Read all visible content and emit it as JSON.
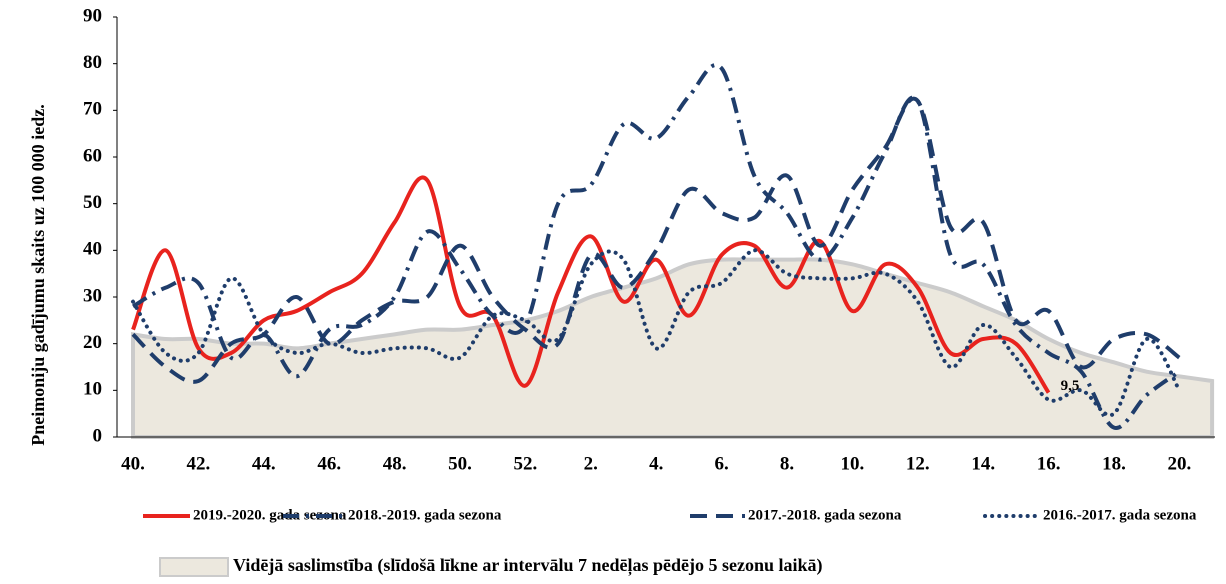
{
  "chart_data": {
    "type": "line",
    "y_label": "Pneimoniju gadījumu skaits uz 100 000 iedz.",
    "categories": [
      "40.",
      null,
      "42.",
      null,
      "44.",
      null,
      "46.",
      null,
      "48.",
      null,
      "50.",
      null,
      "52.",
      null,
      "2.",
      null,
      "4.",
      null,
      "6.",
      null,
      "8.",
      null,
      "10.",
      null,
      "12.",
      null,
      "14.",
      null,
      "16.",
      null,
      "18.",
      null,
      "20.",
      null
    ],
    "ylim": [
      0,
      90
    ],
    "yticks": [
      0,
      10,
      20,
      30,
      40,
      50,
      60,
      70,
      80,
      90
    ],
    "area": {
      "name": "Vidējā saslimstība (slīdošā līkne ar intervālu 7 nedēļas pēdējo 5 sezonu laikā)",
      "color": "#ece8de",
      "edge": "#cbcbcb",
      "values": [
        22,
        21,
        21,
        20,
        20,
        19,
        20,
        21,
        22,
        23,
        23,
        24,
        25,
        27,
        30,
        32,
        34,
        37,
        38,
        38,
        38,
        38,
        37,
        35,
        33,
        31,
        28,
        25,
        21,
        18,
        16,
        14,
        13,
        12
      ]
    },
    "series": [
      {
        "name": "2019.-2020. gada sezona",
        "color": "#e8231e",
        "dash": "solid",
        "values": [
          23,
          40,
          19,
          18,
          25,
          27,
          31,
          35,
          46,
          55,
          28,
          26,
          11,
          31,
          43,
          29,
          38,
          26,
          39,
          41,
          32,
          42,
          27,
          37,
          32,
          18,
          21,
          20,
          9.5,
          null,
          null,
          null,
          null,
          null
        ],
        "value_labels": [
          null,
          null,
          null,
          null,
          null,
          null,
          null,
          null,
          null,
          null,
          null,
          null,
          null,
          null,
          null,
          null,
          null,
          null,
          null,
          null,
          null,
          null,
          null,
          null,
          null,
          null,
          null,
          null,
          "9,5",
          null,
          null,
          null,
          null,
          null
        ]
      },
      {
        "name": "2018.-2019. gada sezona",
        "color": "#1f3d6b",
        "dash": "dashdot",
        "values": [
          28,
          32,
          33,
          17,
          22,
          13,
          23,
          24,
          30,
          44,
          36,
          26,
          24,
          50,
          54,
          67,
          64,
          73,
          79,
          56,
          48,
          38,
          47,
          61,
          72,
          39,
          37,
          24,
          18,
          14,
          2,
          9,
          14,
          null
        ]
      },
      {
        "name": "2017.-2018. gada sezona",
        "color": "#1f3d6b",
        "dash": "dash",
        "values": [
          22,
          15,
          12,
          20,
          22,
          30,
          20,
          25,
          29,
          30,
          41,
          30,
          23,
          20,
          39,
          32,
          40,
          53,
          48,
          47,
          56,
          41,
          53,
          62,
          72,
          45,
          46,
          25,
          27,
          15,
          21,
          22,
          17,
          null
        ]
      },
      {
        "name": "2016.-2017. gada sezona",
        "color": "#1f3d6b",
        "dash": "dot",
        "values": [
          29,
          18,
          18,
          34,
          22,
          18,
          20,
          18,
          19,
          19,
          17,
          26,
          25,
          21,
          37,
          38,
          19,
          31,
          33,
          40,
          35,
          34,
          34,
          35,
          29,
          15,
          24,
          17,
          8,
          10,
          5,
          21,
          10,
          null
        ]
      }
    ]
  }
}
